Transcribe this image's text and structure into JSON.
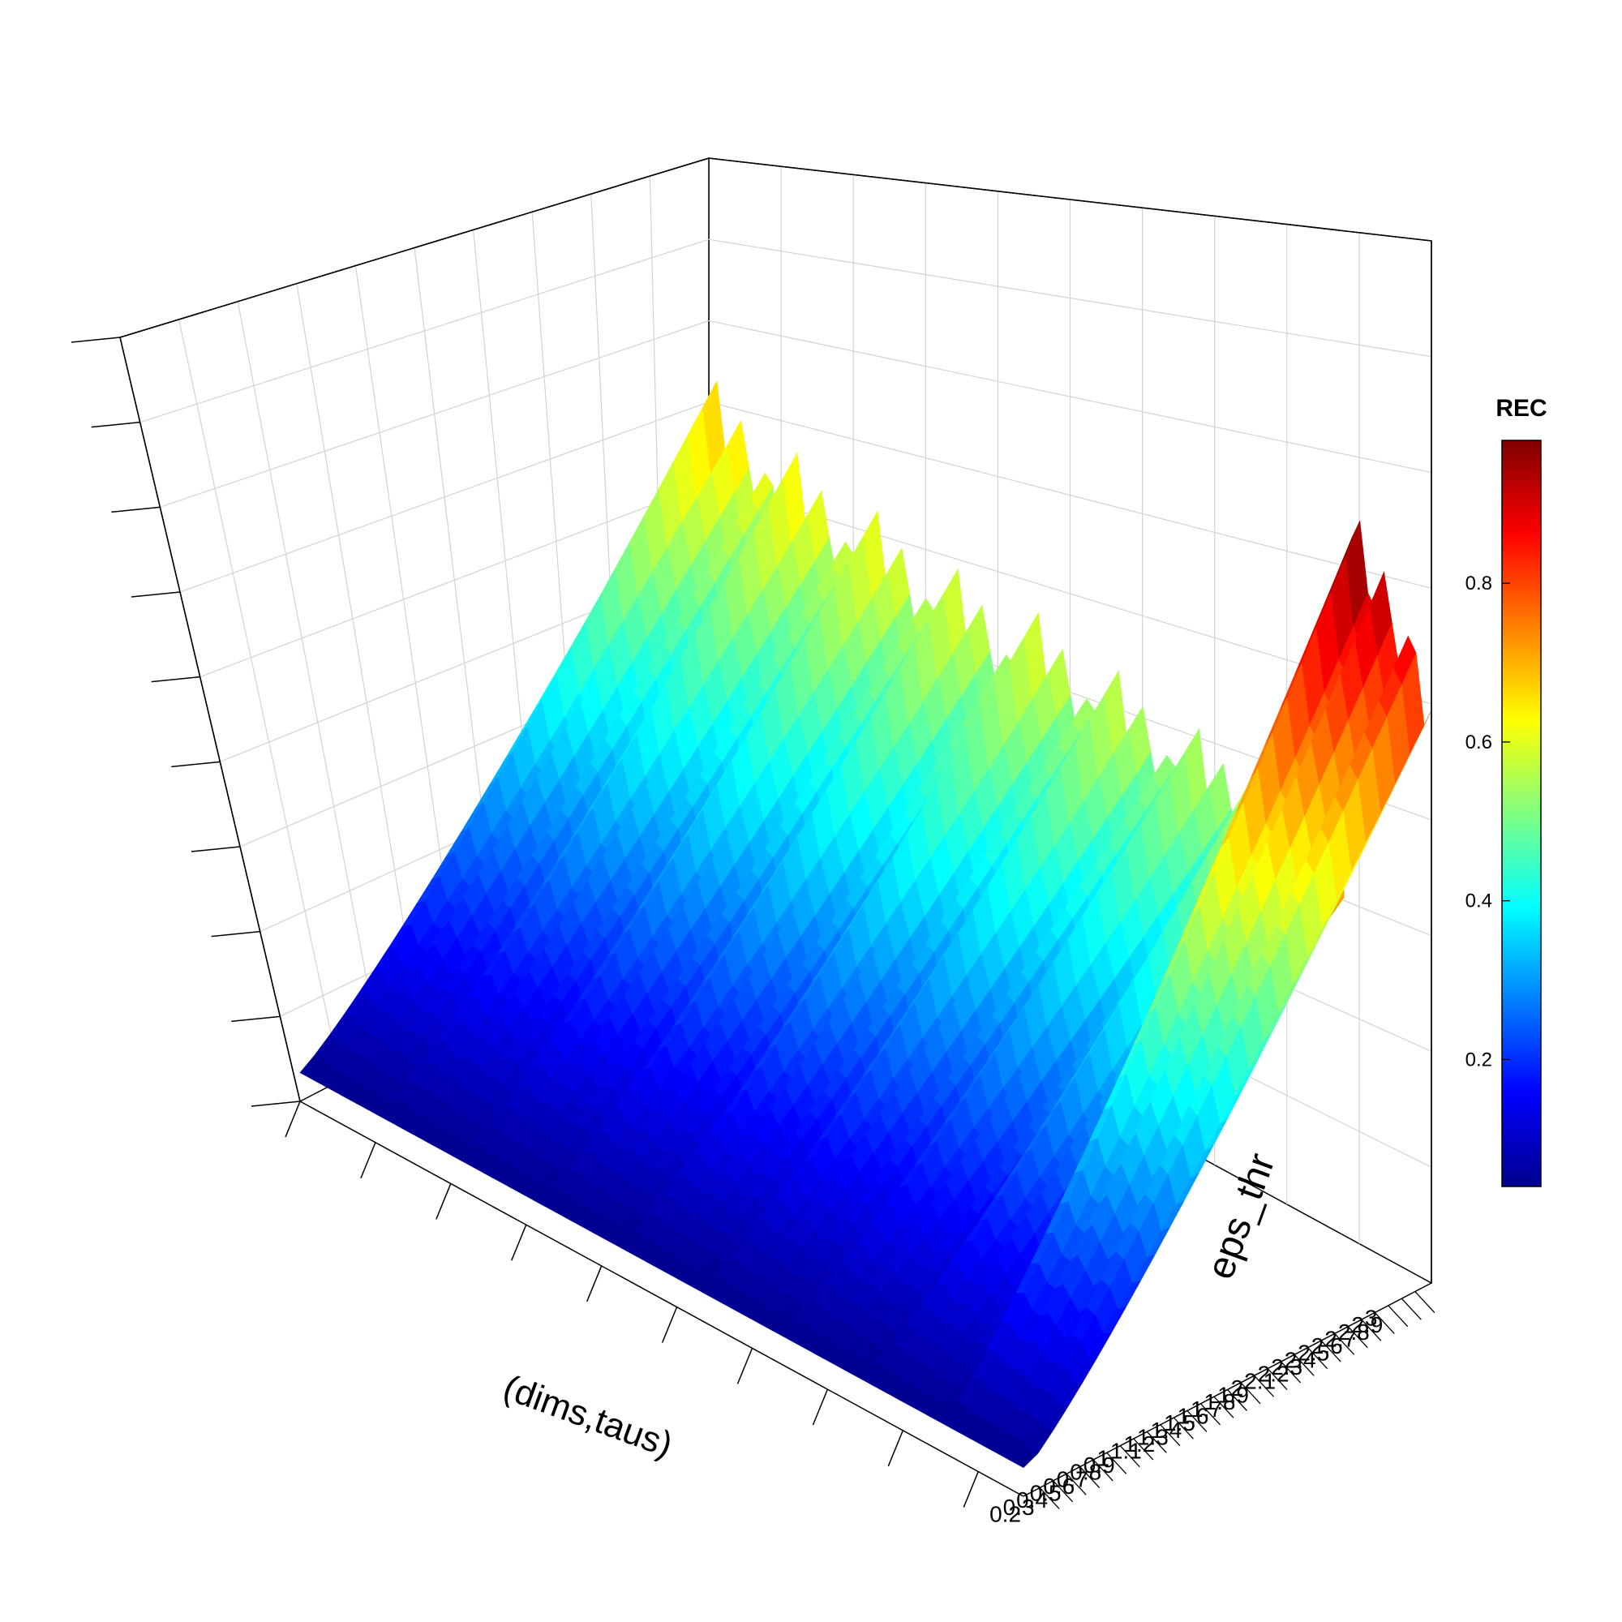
{
  "chart_data": {
    "type": "surface3d",
    "xlabel": "(dims,taus)",
    "ylabel": "eps_thr",
    "zlabel": "",
    "colorbar": {
      "title": "REC",
      "ticks": [
        "0.2",
        "0.4",
        "0.6",
        "0.8"
      ],
      "range": [
        0.04,
        0.98
      ],
      "colormap": [
        "#00008f",
        "#0000ff",
        "#0080ff",
        "#00ffff",
        "#80ff80",
        "#ffff00",
        "#ff8000",
        "#ff0000",
        "#800000"
      ]
    },
    "y_ticks": [
      "0.2",
      "0.3",
      "0.4",
      "0.5",
      "0.6",
      "0.7",
      "0.8",
      "0.9",
      "1",
      "1.1",
      "1.2",
      "1.3",
      "1.4",
      "1.5",
      "1.6",
      "1.7",
      "1.8",
      "1.9",
      "2",
      "2.1",
      "2.2",
      "2.3",
      "2.4",
      "2.5",
      "2.6",
      "2.7",
      "2.8",
      "2.9",
      "3"
    ],
    "groups": 9,
    "group_peak_rec": [
      0.68,
      0.64,
      0.62,
      0.6,
      0.6,
      0.58,
      0.56,
      0.62,
      0.98
    ],
    "grid": true
  }
}
